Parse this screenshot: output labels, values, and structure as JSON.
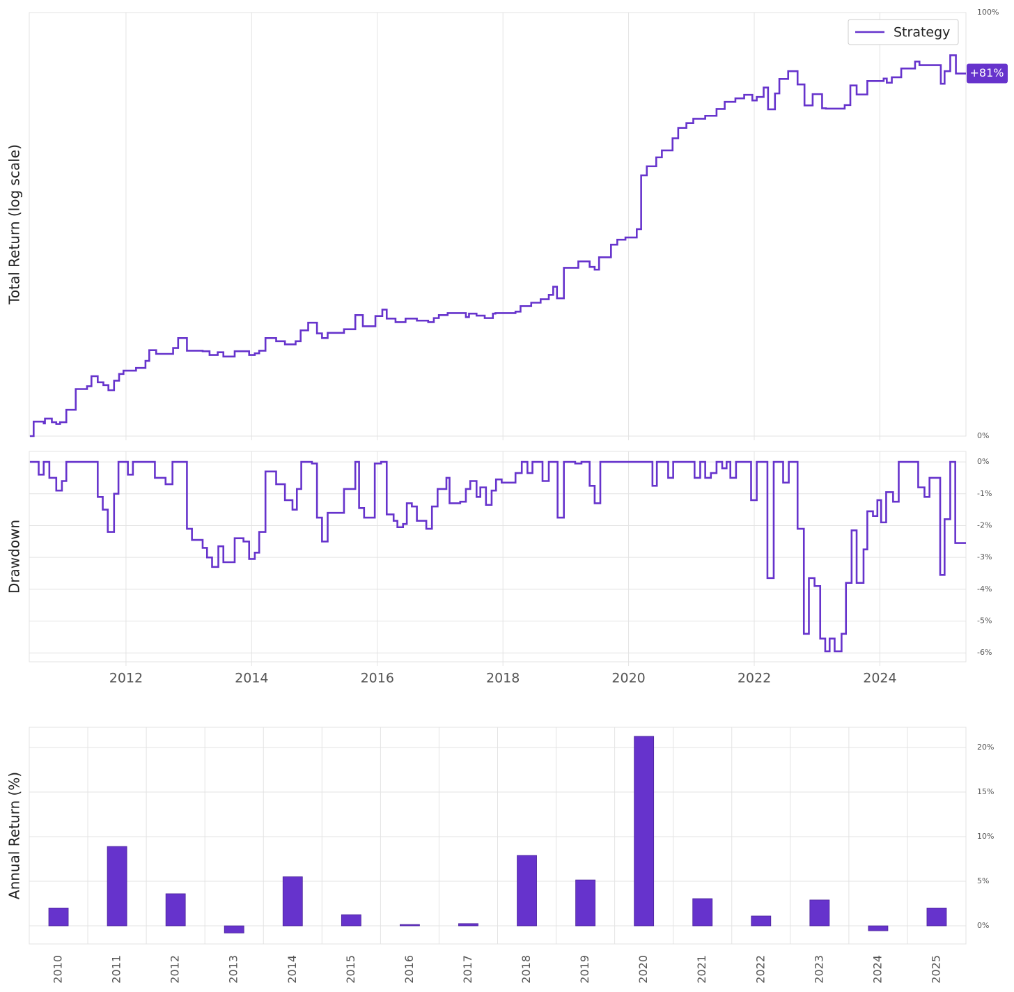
{
  "chart_data": [
    {
      "type": "line",
      "y_label": "Total Return (log scale)",
      "log_scale": true,
      "legend": "upper right",
      "end_label": "+81%",
      "x": [
        2010.47,
        2010.53,
        2010.69,
        2010.71,
        2010.82,
        2010.89,
        2010.95,
        2011.05,
        2011.2,
        2011.38,
        2011.45,
        2011.55,
        2011.64,
        2011.72,
        2011.81,
        2011.89,
        2011.96,
        2012.07,
        2012.16,
        2012.31,
        2012.37,
        2012.48,
        2012.75,
        2012.83,
        2012.97,
        2013.22,
        2013.33,
        2013.46,
        2013.55,
        2013.73,
        2013.96,
        2014.05,
        2014.12,
        2014.22,
        2014.39,
        2014.53,
        2014.7,
        2014.78,
        2014.9,
        2015.04,
        2015.12,
        2015.21,
        2015.47,
        2015.65,
        2015.77,
        2015.97,
        2016.08,
        2016.15,
        2016.29,
        2016.45,
        2016.63,
        2016.81,
        2016.9,
        2016.98,
        2017.12,
        2017.41,
        2017.46,
        2017.58,
        2017.71,
        2017.84,
        2017.88,
        2018.2,
        2018.28,
        2018.45,
        2018.6,
        2018.73,
        2018.8,
        2018.86,
        2018.97,
        2019.2,
        2019.38,
        2019.46,
        2019.53,
        2019.72,
        2019.82,
        2019.95,
        2020.13,
        2020.2,
        2020.29,
        2020.44,
        2020.53,
        2020.7,
        2020.79,
        2020.92,
        2021.03,
        2021.22,
        2021.4,
        2021.53,
        2021.7,
        2021.84,
        2021.97,
        2022.04,
        2022.15,
        2022.22,
        2022.33,
        2022.4,
        2022.54,
        2022.69,
        2022.8,
        2022.93,
        2023.08,
        2023.14,
        2023.44,
        2023.53,
        2023.63,
        2023.8,
        2024.06,
        2024.11,
        2024.19,
        2024.34,
        2024.56,
        2024.63,
        2024.97,
        2025.03,
        2025.12,
        2025.21
      ],
      "series": [
        {
          "name": "Strategy",
          "color": "#6633cc",
          "values": [
            0,
            2.4,
            2.1,
            2.9,
            2.3,
            2.0,
            2.3,
            4.4,
            8.0,
            8.5,
            10.3,
            9.2,
            8.7,
            7.8,
            9.5,
            10.7,
            11.3,
            11.3,
            11.8,
            13.1,
            15.1,
            14.4,
            15.5,
            17.4,
            15.0,
            14.9,
            14.2,
            14.7,
            13.9,
            14.9,
            14.2,
            14.5,
            15.0,
            17.4,
            16.8,
            16.2,
            16.8,
            18.9,
            20.4,
            18.3,
            17.4,
            18.4,
            19.1,
            21.9,
            19.7,
            21.7,
            23.0,
            21.2,
            20.5,
            21.2,
            20.8,
            20.5,
            21.3,
            21.9,
            22.3,
            21.5,
            22.2,
            21.8,
            21.3,
            22.2,
            22.3,
            22.6,
            23.7,
            24.4,
            25.1,
            26.0,
            27.7,
            25.3,
            31.7,
            33.1,
            31.9,
            31.3,
            34.0,
            36.8,
            37.9,
            38.4,
            40.3,
            53.2,
            55.5,
            57.8,
            59.6,
            62.8,
            65.6,
            66.9,
            68.1,
            68.9,
            70.8,
            72.8,
            73.8,
            74.8,
            73.2,
            74.2,
            76.9,
            70.7,
            75.2,
            79.4,
            81.7,
            77.8,
            71.8,
            75.0,
            71.0,
            70.9,
            71.9,
            77.5,
            74.9,
            78.8,
            79.5,
            78.3,
            79.9,
            82.5,
            84.6,
            83.5,
            78.0,
            81.7,
            86.5,
            81
          ]
        }
      ],
      "xlim": [
        2010.46,
        2025.37
      ],
      "xticks": [
        2012,
        2014,
        2016,
        2018,
        2020,
        2022,
        2024
      ],
      "ylim": [
        0,
        100
      ],
      "yticks": [
        {
          "value": 0,
          "label": "0%"
        },
        {
          "value": 100,
          "label": "100%"
        }
      ]
    },
    {
      "type": "line",
      "y_label": "Drawdown",
      "grid": true,
      "x": [
        2010.47,
        2010.61,
        2010.69,
        2010.78,
        2010.89,
        2010.98,
        2011.05,
        2011.55,
        2011.63,
        2011.71,
        2011.81,
        2011.88,
        2012.03,
        2012.11,
        2012.46,
        2012.63,
        2012.74,
        2012.97,
        2013.05,
        2013.22,
        2013.29,
        2013.37,
        2013.47,
        2013.55,
        2013.73,
        2013.87,
        2013.96,
        2014.05,
        2014.12,
        2014.22,
        2014.39,
        2014.53,
        2014.65,
        2014.72,
        2014.79,
        2014.96,
        2015.04,
        2015.12,
        2015.21,
        2015.39,
        2015.47,
        2015.65,
        2015.71,
        2015.79,
        2015.96,
        2016.06,
        2016.15,
        2016.26,
        2016.32,
        2016.41,
        2016.47,
        2016.55,
        2016.63,
        2016.78,
        2016.87,
        2016.96,
        2017.1,
        2017.15,
        2017.32,
        2017.41,
        2017.48,
        2017.58,
        2017.64,
        2017.73,
        2017.82,
        2017.89,
        2017.98,
        2018.2,
        2018.3,
        2018.39,
        2018.47,
        2018.63,
        2018.73,
        2018.87,
        2018.97,
        2019.15,
        2019.25,
        2019.38,
        2019.46,
        2019.55,
        2020.38,
        2020.45,
        2020.63,
        2020.71,
        2021.05,
        2021.14,
        2021.22,
        2021.31,
        2021.4,
        2021.49,
        2021.56,
        2021.62,
        2021.71,
        2021.95,
        2022.04,
        2022.21,
        2022.31,
        2022.46,
        2022.55,
        2022.69,
        2022.79,
        2022.87,
        2022.96,
        2023.05,
        2023.13,
        2023.2,
        2023.28,
        2023.39,
        2023.46,
        2023.55,
        2023.63,
        2023.74,
        2023.8,
        2023.89,
        2023.96,
        2024.02,
        2024.1,
        2024.21,
        2024.3,
        2024.61,
        2024.71,
        2024.79,
        2024.96,
        2025.03,
        2025.12,
        2025.2
      ],
      "values": [
        0,
        -0.4,
        0,
        -0.5,
        -0.9,
        -0.6,
        0,
        -1.1,
        -1.5,
        -2.2,
        -1.0,
        0,
        -0.4,
        0,
        -0.5,
        -0.7,
        0,
        -2.1,
        -2.45,
        -2.7,
        -3.0,
        -3.3,
        -2.65,
        -3.15,
        -2.4,
        -2.5,
        -3.05,
        -2.85,
        -2.2,
        -0.3,
        -0.7,
        -1.2,
        -1.5,
        -0.85,
        0,
        -0.05,
        -1.75,
        -2.5,
        -1.6,
        -1.6,
        -0.85,
        0,
        -1.45,
        -1.75,
        -0.05,
        0,
        -1.65,
        -1.85,
        -2.05,
        -1.95,
        -1.3,
        -1.4,
        -1.85,
        -2.1,
        -1.4,
        -0.85,
        -0.5,
        -1.3,
        -1.25,
        -0.85,
        -0.6,
        -1.1,
        -0.8,
        -1.35,
        -0.9,
        -0.55,
        -0.65,
        -0.35,
        0,
        -0.35,
        0,
        -0.6,
        0,
        -1.75,
        0,
        -0.05,
        0,
        -0.75,
        -1.3,
        0,
        -0.75,
        0,
        -0.5,
        0,
        -0.5,
        0,
        -0.5,
        -0.35,
        0,
        -0.2,
        0,
        -0.5,
        0,
        -1.2,
        0,
        -3.65,
        0,
        -0.65,
        0,
        -2.1,
        -5.4,
        -3.65,
        -3.9,
        -5.55,
        -5.95,
        -5.55,
        -5.95,
        -5.4,
        -3.8,
        -2.15,
        -3.8,
        -2.75,
        -1.55,
        -1.7,
        -1.2,
        -1.9,
        -0.95,
        -1.25,
        0,
        -0.8,
        -1.1,
        -0.5,
        -3.55,
        -1.8,
        0,
        -2.55
      ],
      "color": "#6633cc",
      "xlim": [
        2010.46,
        2025.37
      ],
      "xticks": [
        2012,
        2014,
        2016,
        2018,
        2020,
        2022,
        2024
      ],
      "ylim": [
        -6.28,
        0.33
      ],
      "yticks": [
        {
          "value": 0,
          "label": "0%"
        },
        {
          "value": -1,
          "label": "-1%"
        },
        {
          "value": -2,
          "label": "-2%"
        },
        {
          "value": -3,
          "label": "-3%"
        },
        {
          "value": -4,
          "label": "-4%"
        },
        {
          "value": -5,
          "label": "-5%"
        },
        {
          "value": -6,
          "label": "-6%"
        }
      ]
    },
    {
      "type": "bar",
      "y_label": "Annual Return (%)",
      "grid": true,
      "categories": [
        "2010",
        "2011",
        "2012",
        "2013",
        "2014",
        "2015",
        "2016",
        "2017",
        "2018",
        "2019",
        "2020",
        "2021",
        "2022",
        "2023",
        "2024",
        "2025"
      ],
      "values": [
        2.0,
        8.9,
        3.6,
        -0.8,
        5.5,
        1.25,
        0.15,
        0.25,
        7.9,
        5.15,
        21.25,
        3.05,
        1.1,
        2.9,
        -0.55,
        2.0
      ],
      "color": "#6633cc",
      "ylim": [
        -2.03,
        22.27
      ],
      "yticks": [
        {
          "value": 0,
          "label": "0%"
        },
        {
          "value": 5,
          "label": "5%"
        },
        {
          "value": 10,
          "label": "10%"
        },
        {
          "value": 15,
          "label": "15%"
        },
        {
          "value": 20,
          "label": "20%"
        }
      ]
    }
  ]
}
